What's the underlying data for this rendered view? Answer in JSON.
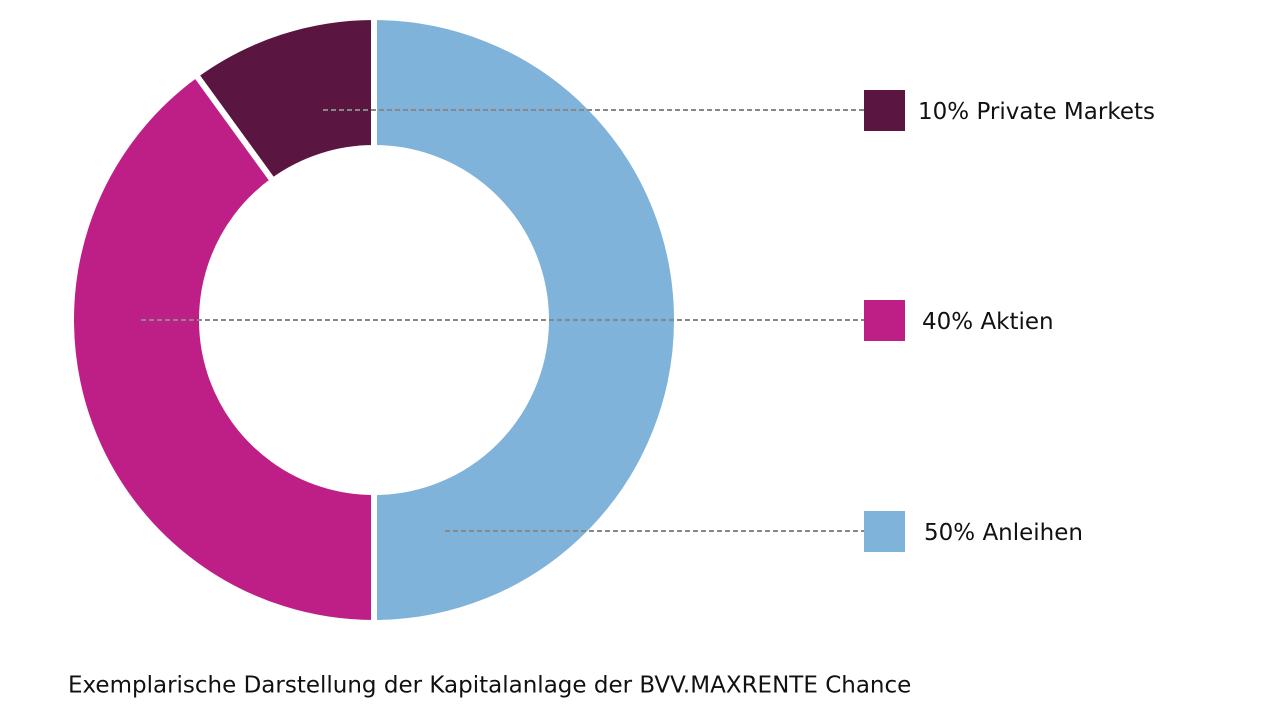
{
  "chart_data": {
    "type": "pie",
    "title": "Exemplarische Darstellung der Kapitalanlage der BVV.MAXRENTE Chance",
    "categories": [
      "Private Markets",
      "Aktien",
      "Anleihen"
    ],
    "values": [
      10,
      40,
      50
    ],
    "value_labels": [
      "10%",
      "40%",
      "50%"
    ],
    "colors": [
      "#5a1640",
      "#be1f86",
      "#7fb3d9"
    ]
  }
}
